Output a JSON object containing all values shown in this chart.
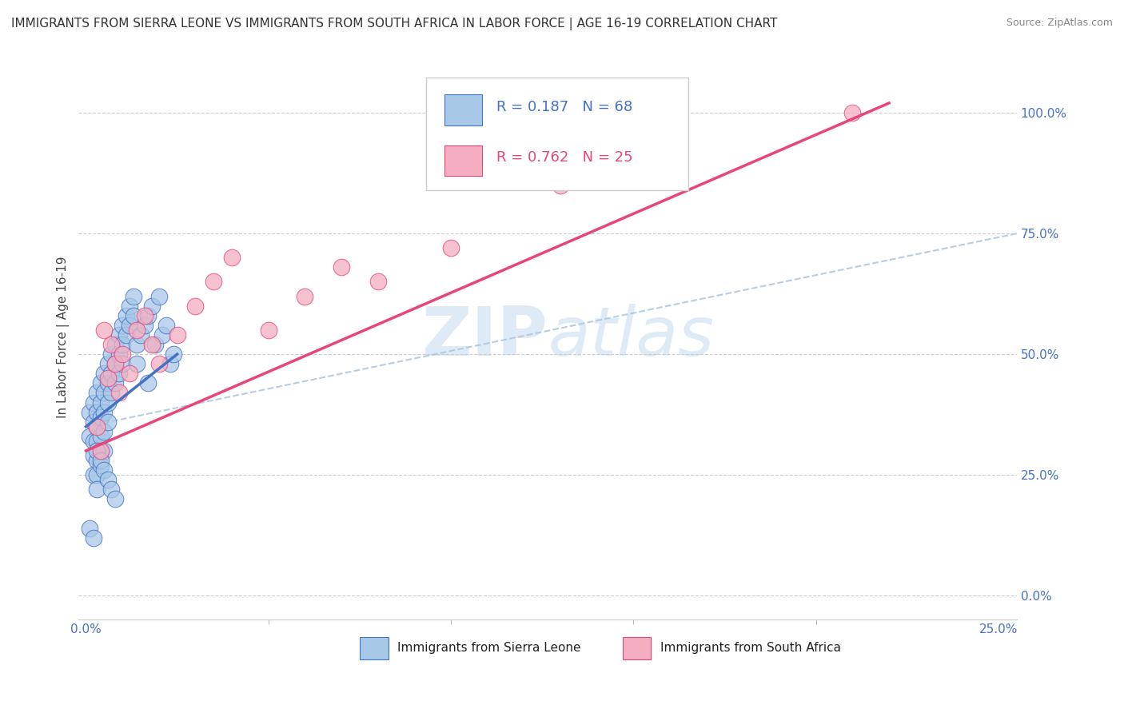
{
  "title": "IMMIGRANTS FROM SIERRA LEONE VS IMMIGRANTS FROM SOUTH AFRICA IN LABOR FORCE | AGE 16-19 CORRELATION CHART",
  "source": "Source: ZipAtlas.com",
  "ylabel": "In Labor Force | Age 16-19",
  "xlim": [
    -0.002,
    0.255
  ],
  "ylim": [
    -0.05,
    1.12
  ],
  "ytick_vals": [
    0.0,
    0.25,
    0.5,
    0.75,
    1.0
  ],
  "ytick_labels": [
    "0.0%",
    "25.0%",
    "50.0%",
    "75.0%",
    "100.0%"
  ],
  "xtick_vals": [
    0.0,
    0.25
  ],
  "xtick_labels": [
    "0.0%",
    "25.0%"
  ],
  "sierra_leone_color": "#a8c8e8",
  "south_africa_color": "#f4aec0",
  "sierra_leone_line_color": "#4472c4",
  "south_africa_line_color": "#e8457a",
  "dashed_line_color": "#b0c8e0",
  "R_sierra_leone": 0.187,
  "N_sierra_leone": 68,
  "R_south_africa": 0.762,
  "N_south_africa": 25,
  "watermark_zip": "ZIP",
  "watermark_atlas": "atlas",
  "legend_labels": [
    "Immigrants from Sierra Leone",
    "Immigrants from South Africa"
  ],
  "background_color": "#ffffff",
  "title_fontsize": 11,
  "axis_label_fontsize": 11,
  "tick_fontsize": 11,
  "legend_fontsize": 13,
  "sl_x": [
    0.001,
    0.001,
    0.002,
    0.002,
    0.002,
    0.002,
    0.002,
    0.003,
    0.003,
    0.003,
    0.003,
    0.003,
    0.003,
    0.003,
    0.004,
    0.004,
    0.004,
    0.004,
    0.004,
    0.004,
    0.005,
    0.005,
    0.005,
    0.005,
    0.005,
    0.006,
    0.006,
    0.006,
    0.006,
    0.007,
    0.007,
    0.007,
    0.008,
    0.008,
    0.008,
    0.009,
    0.009,
    0.009,
    0.01,
    0.01,
    0.01,
    0.011,
    0.011,
    0.012,
    0.012,
    0.013,
    0.013,
    0.014,
    0.014,
    0.015,
    0.016,
    0.017,
    0.017,
    0.018,
    0.019,
    0.02,
    0.021,
    0.022,
    0.023,
    0.024,
    0.001,
    0.002,
    0.003,
    0.004,
    0.005,
    0.006,
    0.007,
    0.008
  ],
  "sl_y": [
    0.38,
    0.33,
    0.4,
    0.36,
    0.32,
    0.29,
    0.25,
    0.42,
    0.38,
    0.35,
    0.32,
    0.28,
    0.25,
    0.22,
    0.44,
    0.4,
    0.37,
    0.33,
    0.3,
    0.27,
    0.46,
    0.42,
    0.38,
    0.34,
    0.3,
    0.48,
    0.44,
    0.4,
    0.36,
    0.5,
    0.46,
    0.42,
    0.52,
    0.48,
    0.44,
    0.54,
    0.5,
    0.46,
    0.56,
    0.52,
    0.48,
    0.58,
    0.54,
    0.6,
    0.56,
    0.62,
    0.58,
    0.52,
    0.48,
    0.54,
    0.56,
    0.58,
    0.44,
    0.6,
    0.52,
    0.62,
    0.54,
    0.56,
    0.48,
    0.5,
    0.14,
    0.12,
    0.3,
    0.28,
    0.26,
    0.24,
    0.22,
    0.2
  ],
  "sa_x": [
    0.003,
    0.004,
    0.005,
    0.006,
    0.007,
    0.008,
    0.009,
    0.01,
    0.012,
    0.014,
    0.016,
    0.018,
    0.02,
    0.025,
    0.03,
    0.035,
    0.04,
    0.05,
    0.06,
    0.07,
    0.08,
    0.1,
    0.13,
    0.15,
    0.21
  ],
  "sa_y": [
    0.35,
    0.3,
    0.55,
    0.45,
    0.52,
    0.48,
    0.42,
    0.5,
    0.46,
    0.55,
    0.58,
    0.52,
    0.48,
    0.54,
    0.6,
    0.65,
    0.7,
    0.55,
    0.62,
    0.68,
    0.65,
    0.72,
    0.85,
    0.9,
    1.0
  ],
  "sl_line_x": [
    0.0,
    0.025
  ],
  "sl_line_y": [
    0.35,
    0.5
  ],
  "sa_line_x": [
    0.0,
    0.22
  ],
  "sa_line_y": [
    0.3,
    1.02
  ],
  "dash_line_x": [
    0.0,
    0.255
  ],
  "dash_line_y": [
    0.35,
    0.75
  ]
}
